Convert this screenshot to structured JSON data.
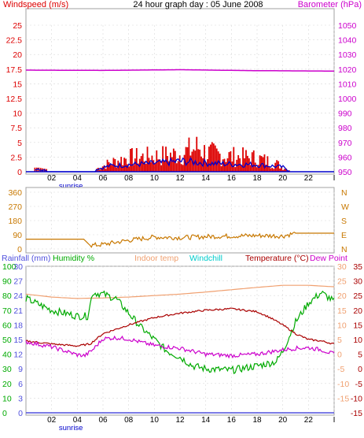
{
  "chart_data": [
    {
      "type": "bar",
      "title": "24 hour graph day : 05 June 2008",
      "left_label": "Windspeed (m/s)",
      "right_label": "Barometer (hPa)",
      "x_ticks": [
        "02",
        "04",
        "06",
        "08",
        "10",
        "12",
        "14",
        "16",
        "18",
        "20",
        "22",
        "I"
      ],
      "x_annotation": "sunrise",
      "left_ticks": [
        "25",
        "22.5",
        "20",
        "17.5",
        "15",
        "12.5",
        "10",
        "7.5",
        "5",
        "2.5",
        "0"
      ],
      "right_ticks": [
        "1050",
        "1040",
        "1030",
        "1020",
        "1010",
        "1000",
        "990",
        "980",
        "970",
        "960",
        "950"
      ],
      "ylim_left": [
        0,
        25
      ],
      "ylim_right": [
        947,
        1054
      ],
      "colors": {
        "wind": "#dd0000",
        "gust": "#0000cc",
        "barometer": "#cc00cc",
        "left_axis": "#dd0000",
        "right_axis": "#cc00cc"
      },
      "series": [
        {
          "values_ref": "barometer",
          "hours": [
            0,
            6,
            12,
            18,
            24
          ],
          "values": [
            1021.2,
            1021.0,
            1021.5,
            1020.8,
            1020.5
          ]
        },
        {
          "values_ref": "windspeed",
          "hours": [
            1,
            2,
            5.5,
            6.5,
            8,
            10,
            12,
            13.5,
            14,
            16,
            18,
            19.5,
            20.5
          ],
          "values": [
            0.7,
            0.3,
            0.5,
            1.5,
            2.4,
            2.6,
            3.0,
            4.2,
            3.2,
            2.6,
            2.3,
            1.4,
            0.3
          ]
        },
        {
          "values_ref": "gust",
          "hours": [
            1,
            2,
            5.5,
            6.5,
            8,
            10,
            12,
            14,
            16,
            18,
            20,
            20.5
          ],
          "values": [
            0.4,
            0.2,
            0.4,
            1.0,
            1.2,
            1.4,
            1.8,
            1.5,
            1.3,
            1.2,
            0.8,
            0.1
          ]
        }
      ]
    },
    {
      "type": "line",
      "left_ticks": [
        "360",
        "270",
        "180",
        "90",
        "0"
      ],
      "right_ticks": [
        "N",
        "W",
        "S",
        "E",
        "N"
      ],
      "ylim": [
        0,
        360
      ],
      "colors": {
        "direction": "#c87800",
        "left_axis": "#c87800",
        "right_axis": "#c87800"
      },
      "series": [
        {
          "values_ref": "direction",
          "hours": [
            0,
            4.5,
            5,
            6,
            8,
            10,
            12,
            14,
            16,
            18,
            20,
            21,
            24
          ],
          "values": [
            62,
            62,
            22,
            28,
            55,
            75,
            72,
            78,
            82,
            85,
            82,
            100,
            100
          ]
        }
      ]
    },
    {
      "type": "line",
      "labels": {
        "rainfall": "Rainfall (mm)",
        "humidity": "Humidity %",
        "indoor": "Indoor temp",
        "windchill": "Windchill",
        "temperature": "Temperature (°C)",
        "dewpoint": "Dew Point"
      },
      "x_ticks": [
        "02",
        "04",
        "06",
        "08",
        "10",
        "12",
        "14",
        "16",
        "18",
        "20",
        "22",
        "I"
      ],
      "x_annotation": "sunrise",
      "left_ticks": [
        {
          "rain": "30",
          "hum": "100"
        },
        {
          "rain": "27",
          "hum": "90"
        },
        {
          "rain": "24",
          "hum": "80"
        },
        {
          "rain": "21",
          "hum": "70"
        },
        {
          "rain": "18",
          "hum": "60"
        },
        {
          "rain": "15",
          "hum": "50"
        },
        {
          "rain": "12",
          "hum": "40"
        },
        {
          "rain": "9",
          "hum": "30"
        },
        {
          "rain": "6",
          "hum": "20"
        },
        {
          "rain": "3",
          "hum": "10"
        },
        {
          "rain": "0",
          "hum": "0"
        }
      ],
      "right_ticks": [
        {
          "a": "30",
          "b": "35"
        },
        {
          "a": "25",
          "b": "30"
        },
        {
          "a": "20",
          "b": "25"
        },
        {
          "a": "15",
          "b": "20"
        },
        {
          "a": "10",
          "b": "15"
        },
        {
          "a": "5",
          "b": "10"
        },
        {
          "a": "0",
          "b": "5"
        },
        {
          "a": "-5",
          "b": "0"
        },
        {
          "a": "-10",
          "b": "-5"
        },
        {
          "a": "-15",
          "b": "-10"
        },
        {
          "a": "",
          "b": "-15"
        }
      ],
      "ylim_temp": [
        -15,
        35
      ],
      "colors": {
        "rainfall": "#5050dd",
        "humidity": "#00aa00",
        "indoor": "#f0a070",
        "windchill": "#00cccc",
        "temperature": "#aa0000",
        "dewpoint": "#cc00cc"
      },
      "series": [
        {
          "values_ref": "indoor",
          "hours": [
            0,
            2,
            4,
            6,
            8,
            10,
            12,
            14,
            16,
            18,
            20,
            22,
            24
          ],
          "values": [
            25.5,
            24.5,
            24.0,
            24.2,
            24.5,
            25.0,
            25.5,
            26.2,
            27.0,
            27.8,
            28.5,
            28.5,
            28.0
          ]
        },
        {
          "values_ref": "humidity",
          "hours": [
            0,
            2,
            4,
            4.8,
            5.2,
            6,
            7,
            8,
            9,
            10,
            11,
            12,
            13,
            14,
            16,
            18,
            19.5,
            20,
            21,
            22,
            23,
            24
          ],
          "values": [
            78,
            70,
            66,
            66,
            82,
            81,
            78,
            68,
            58,
            50,
            42,
            38,
            32,
            30,
            29,
            32,
            35,
            42,
            62,
            75,
            82,
            76
          ]
        },
        {
          "values_ref": "temperature",
          "hours": [
            0,
            2,
            4,
            5,
            6,
            8,
            10,
            12,
            14,
            16,
            17,
            18,
            19,
            20,
            21,
            22,
            23,
            24
          ],
          "values": [
            9.5,
            8.5,
            7.8,
            8.5,
            12,
            15,
            17.5,
            19,
            20,
            20.5,
            20,
            19.5,
            17.5,
            15,
            12,
            10,
            9.5,
            8.5
          ]
        },
        {
          "values_ref": "dewpoint",
          "hours": [
            0,
            2,
            4,
            4.6,
            5.2,
            6,
            7,
            8,
            9,
            10,
            12,
            14,
            16,
            18,
            20,
            21,
            22,
            23,
            24
          ],
          "values": [
            9.2,
            7.5,
            4.8,
            4.5,
            6.5,
            10.3,
            10.6,
            10.2,
            9.0,
            8.0,
            7.0,
            5.0,
            4.5,
            5.0,
            6.5,
            7.0,
            7.2,
            6.5,
            5.0
          ]
        },
        {
          "values_ref": "rainfall",
          "hours": [
            0,
            24
          ],
          "values": [
            0,
            0
          ]
        }
      ]
    }
  ]
}
